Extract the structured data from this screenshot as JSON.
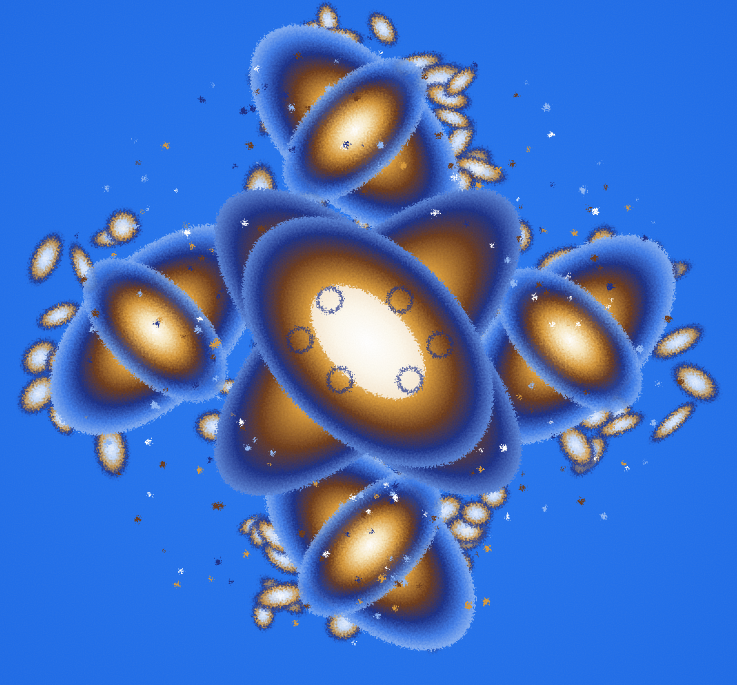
{
  "image": {
    "subject": "fractal",
    "palette": {
      "background": "#2a78f0",
      "background_edge": "#1f6be6",
      "deep_blue": "#1b2f86",
      "mid_blue": "#3f7be6",
      "light_blue": "#8fb6f3",
      "pale": "#eef3fb",
      "white": "#ffffff",
      "gold": "#d89a3a",
      "brown": "#6b3a1c",
      "cream": "#f6e3b6"
    }
  }
}
